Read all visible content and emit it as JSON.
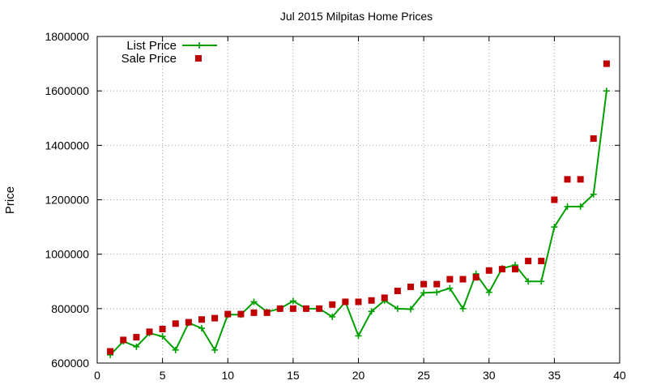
{
  "chart_data": {
    "type": "line",
    "title": "Jul 2015 Milpitas Home Prices",
    "xlabel": "",
    "ylabel": "Price",
    "xlim": [
      0,
      40
    ],
    "ylim": [
      600000,
      1800000
    ],
    "xticks": [
      0,
      5,
      10,
      15,
      20,
      25,
      30,
      35,
      40
    ],
    "yticks": [
      600000,
      800000,
      1000000,
      1200000,
      1400000,
      1600000,
      1800000
    ],
    "grid": true,
    "legend_position": "top-left",
    "series": [
      {
        "name": "List Price",
        "style": "line-with-plus-markers",
        "color": "#00a000",
        "x": [
          1,
          2,
          3,
          4,
          5,
          6,
          7,
          8,
          9,
          10,
          11,
          12,
          13,
          14,
          15,
          16,
          17,
          18,
          19,
          20,
          21,
          22,
          23,
          24,
          25,
          26,
          27,
          28,
          29,
          30,
          31,
          32,
          33,
          34,
          35,
          36,
          37,
          38,
          39
        ],
        "values": [
          630000,
          680000,
          660000,
          710000,
          698000,
          648000,
          748000,
          728000,
          648000,
          778000,
          778000,
          825000,
          788000,
          800000,
          828000,
          800000,
          800000,
          770000,
          825000,
          700000,
          790000,
          830000,
          800000,
          798000,
          858000,
          860000,
          875000,
          800000,
          928000,
          860000,
          948000,
          960000,
          900000,
          900000,
          1100000,
          1175000,
          1175000,
          1220000,
          1600000
        ]
      },
      {
        "name": "Sale Price",
        "style": "square-markers",
        "color": "#c00000",
        "x": [
          1,
          2,
          3,
          4,
          5,
          6,
          7,
          8,
          9,
          10,
          11,
          12,
          13,
          14,
          15,
          16,
          17,
          18,
          19,
          20,
          21,
          22,
          23,
          24,
          25,
          26,
          27,
          28,
          29,
          30,
          31,
          32,
          33,
          34,
          35,
          36,
          37,
          38,
          39
        ],
        "values": [
          643000,
          685000,
          695000,
          715000,
          725000,
          745000,
          750000,
          760000,
          765000,
          780000,
          780000,
          785000,
          785000,
          800000,
          800000,
          800000,
          800000,
          815000,
          825000,
          825000,
          830000,
          840000,
          865000,
          880000,
          890000,
          890000,
          908000,
          908000,
          915000,
          940000,
          945000,
          945000,
          975000,
          975000,
          1200000,
          1275000,
          1275000,
          1425000,
          1700000
        ]
      }
    ]
  }
}
